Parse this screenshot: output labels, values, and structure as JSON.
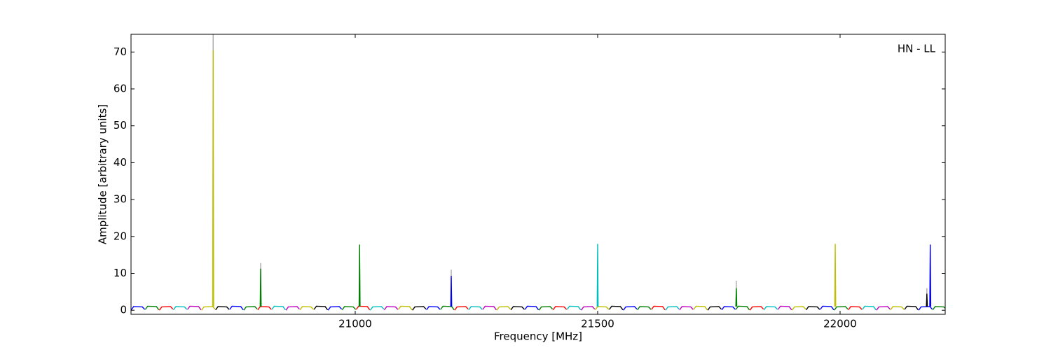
{
  "chart_data": {
    "type": "line",
    "annotation": "HN - LL",
    "x_label": "Frequency [MHz]",
    "y_label": "Amplitude [arbitrary units]",
    "xlim": [
      20537.6,
      22216.8
    ],
    "ylim": [
      -1.1,
      74.8
    ],
    "xticks": [
      21000,
      21500,
      22000
    ],
    "yticks": [
      0,
      10,
      20,
      30,
      40,
      50,
      60,
      70
    ],
    "series": [
      {
        "color": "#aaaaaa",
        "x": [
          20707,
          20707
        ],
        "values": [
          1,
          75
        ]
      },
      {
        "color": "#aaaaaa",
        "x": [
          20805,
          20805
        ],
        "values": [
          1,
          12.8
        ]
      },
      {
        "color": "#aaaaaa",
        "x": [
          21198,
          21198
        ],
        "values": [
          1,
          11
        ]
      },
      {
        "color": "#aaaaaa",
        "x": [
          21786,
          21786
        ],
        "values": [
          1,
          8
        ]
      },
      {
        "color": "#aaaaaa",
        "x": [
          22179,
          22179
        ],
        "values": [
          1,
          6
        ]
      },
      {
        "color": "#0000ff",
        "x": [
          20538,
          20543,
          20561,
          20566
        ],
        "values": [
          0.1,
          1.0,
          0.9,
          0.2
        ]
      },
      {
        "color": "#008000",
        "x": [
          20567,
          20572,
          20590,
          20595
        ],
        "values": [
          0.2,
          1.1,
          1.0,
          0.1
        ]
      },
      {
        "color": "#ff0000",
        "x": [
          20596,
          20601,
          20619,
          20624
        ],
        "values": [
          0.0,
          0.9,
          1.0,
          0.3
        ]
      },
      {
        "color": "#00bfbf",
        "x": [
          20625,
          20630,
          20648,
          20653
        ],
        "values": [
          0.1,
          1.0,
          0.9,
          0.2
        ]
      },
      {
        "color": "#bf00bf",
        "x": [
          20654,
          20659,
          20677,
          20682
        ],
        "values": [
          0.2,
          1.1,
          1.0,
          0.1
        ]
      },
      {
        "color": "#bfbf00",
        "x": [
          20683,
          20688,
          20706,
          20711
        ],
        "values": [
          0.0,
          0.9,
          1.0,
          0.3
        ]
      },
      {
        "color": "#000000",
        "x": [
          20712,
          20717,
          20735,
          20740
        ],
        "values": [
          0.1,
          1.0,
          0.9,
          0.2
        ]
      },
      {
        "color": "#0000ff",
        "x": [
          20741,
          20746,
          20764,
          20769
        ],
        "values": [
          0.2,
          1.1,
          1.0,
          0.1
        ]
      },
      {
        "color": "#008000",
        "x": [
          20770,
          20775,
          20793,
          20798
        ],
        "values": [
          0.0,
          0.9,
          1.0,
          0.3
        ]
      },
      {
        "color": "#ff0000",
        "x": [
          20799,
          20804,
          20822,
          20827
        ],
        "values": [
          0.1,
          1.0,
          0.9,
          0.2
        ]
      },
      {
        "color": "#00bfbf",
        "x": [
          20828,
          20833,
          20851,
          20856
        ],
        "values": [
          0.2,
          1.1,
          1.0,
          0.1
        ]
      },
      {
        "color": "#bf00bf",
        "x": [
          20857,
          20862,
          20880,
          20885
        ],
        "values": [
          0.0,
          0.9,
          1.0,
          0.3
        ]
      },
      {
        "color": "#bfbf00",
        "x": [
          20886,
          20891,
          20909,
          20914
        ],
        "values": [
          0.1,
          1.0,
          0.9,
          0.2
        ]
      },
      {
        "color": "#000000",
        "x": [
          20915,
          20920,
          20938,
          20943
        ],
        "values": [
          0.2,
          1.1,
          1.0,
          0.1
        ]
      },
      {
        "color": "#0000ff",
        "x": [
          20944,
          20949,
          20967,
          20972
        ],
        "values": [
          0.0,
          0.9,
          1.0,
          0.3
        ]
      },
      {
        "color": "#008000",
        "x": [
          20973,
          20978,
          20996,
          21001
        ],
        "values": [
          0.1,
          1.0,
          0.9,
          0.2
        ]
      },
      {
        "color": "#ff0000",
        "x": [
          21002,
          21007,
          21025,
          21030
        ],
        "values": [
          0.2,
          1.1,
          1.0,
          0.1
        ]
      },
      {
        "color": "#00bfbf",
        "x": [
          21031,
          21036,
          21054,
          21059
        ],
        "values": [
          0.0,
          0.9,
          1.0,
          0.3
        ]
      },
      {
        "color": "#bf00bf",
        "x": [
          21060,
          21065,
          21083,
          21088
        ],
        "values": [
          0.1,
          1.0,
          0.9,
          0.2
        ]
      },
      {
        "color": "#bfbf00",
        "x": [
          21089,
          21094,
          21112,
          21117
        ],
        "values": [
          0.2,
          1.1,
          1.0,
          0.1
        ]
      },
      {
        "color": "#000000",
        "x": [
          21118,
          21123,
          21141,
          21146
        ],
        "values": [
          0.0,
          0.9,
          1.0,
          0.3
        ]
      },
      {
        "color": "#0000ff",
        "x": [
          21147,
          21152,
          21170,
          21175
        ],
        "values": [
          0.1,
          1.0,
          0.9,
          0.2
        ]
      },
      {
        "color": "#008000",
        "x": [
          21176,
          21181,
          21199,
          21204
        ],
        "values": [
          0.2,
          1.1,
          1.0,
          0.1
        ]
      },
      {
        "color": "#ff0000",
        "x": [
          21205,
          21210,
          21228,
          21233
        ],
        "values": [
          0.0,
          0.9,
          1.0,
          0.3
        ]
      },
      {
        "color": "#00bfbf",
        "x": [
          21234,
          21239,
          21257,
          21262
        ],
        "values": [
          0.1,
          1.0,
          0.9,
          0.2
        ]
      },
      {
        "color": "#bf00bf",
        "x": [
          21263,
          21268,
          21286,
          21291
        ],
        "values": [
          0.2,
          1.1,
          1.0,
          0.1
        ]
      },
      {
        "color": "#bfbf00",
        "x": [
          21292,
          21297,
          21315,
          21320
        ],
        "values": [
          0.0,
          0.9,
          1.0,
          0.3
        ]
      },
      {
        "color": "#000000",
        "x": [
          21321,
          21326,
          21344,
          21349
        ],
        "values": [
          0.1,
          1.0,
          0.9,
          0.2
        ]
      },
      {
        "color": "#0000ff",
        "x": [
          21350,
          21355,
          21373,
          21378
        ],
        "values": [
          0.2,
          1.1,
          1.0,
          0.1
        ]
      },
      {
        "color": "#008000",
        "x": [
          21379,
          21384,
          21402,
          21407
        ],
        "values": [
          0.0,
          0.9,
          1.0,
          0.3
        ]
      },
      {
        "color": "#ff0000",
        "x": [
          21408,
          21413,
          21431,
          21436
        ],
        "values": [
          0.1,
          1.0,
          0.9,
          0.2
        ]
      },
      {
        "color": "#00bfbf",
        "x": [
          21437,
          21442,
          21460,
          21465
        ],
        "values": [
          0.2,
          1.1,
          1.0,
          0.1
        ]
      },
      {
        "color": "#bf00bf",
        "x": [
          21466,
          21471,
          21489,
          21494
        ],
        "values": [
          0.0,
          0.9,
          1.0,
          0.3
        ]
      },
      {
        "color": "#bfbf00",
        "x": [
          21495,
          21500,
          21518,
          21523
        ],
        "values": [
          0.1,
          1.0,
          0.9,
          0.2
        ]
      },
      {
        "color": "#000000",
        "x": [
          21524,
          21529,
          21547,
          21552
        ],
        "values": [
          0.2,
          1.1,
          1.0,
          0.1
        ]
      },
      {
        "color": "#0000ff",
        "x": [
          21553,
          21558,
          21576,
          21581
        ],
        "values": [
          0.0,
          0.9,
          1.0,
          0.3
        ]
      },
      {
        "color": "#008000",
        "x": [
          21582,
          21587,
          21605,
          21610
        ],
        "values": [
          0.1,
          1.0,
          0.9,
          0.2
        ]
      },
      {
        "color": "#ff0000",
        "x": [
          21611,
          21616,
          21634,
          21639
        ],
        "values": [
          0.2,
          1.1,
          1.0,
          0.1
        ]
      },
      {
        "color": "#00bfbf",
        "x": [
          21640,
          21645,
          21663,
          21668
        ],
        "values": [
          0.0,
          0.9,
          1.0,
          0.3
        ]
      },
      {
        "color": "#bf00bf",
        "x": [
          21669,
          21674,
          21692,
          21697
        ],
        "values": [
          0.1,
          1.0,
          0.9,
          0.2
        ]
      },
      {
        "color": "#bfbf00",
        "x": [
          21698,
          21703,
          21721,
          21726
        ],
        "values": [
          0.2,
          1.1,
          1.0,
          0.1
        ]
      },
      {
        "color": "#000000",
        "x": [
          21727,
          21732,
          21750,
          21755
        ],
        "values": [
          0.0,
          0.9,
          1.0,
          0.3
        ]
      },
      {
        "color": "#0000ff",
        "x": [
          21756,
          21761,
          21779,
          21784
        ],
        "values": [
          0.1,
          1.0,
          0.9,
          0.2
        ]
      },
      {
        "color": "#008000",
        "x": [
          21785,
          21790,
          21808,
          21813
        ],
        "values": [
          0.2,
          1.1,
          1.0,
          0.1
        ]
      },
      {
        "color": "#ff0000",
        "x": [
          21814,
          21819,
          21837,
          21842
        ],
        "values": [
          0.0,
          0.9,
          1.0,
          0.3
        ]
      },
      {
        "color": "#00bfbf",
        "x": [
          21843,
          21848,
          21866,
          21871
        ],
        "values": [
          0.1,
          1.0,
          0.9,
          0.2
        ]
      },
      {
        "color": "#bf00bf",
        "x": [
          21872,
          21877,
          21895,
          21900
        ],
        "values": [
          0.2,
          1.1,
          1.0,
          0.1
        ]
      },
      {
        "color": "#bfbf00",
        "x": [
          21901,
          21906,
          21924,
          21929
        ],
        "values": [
          0.0,
          0.9,
          1.0,
          0.3
        ]
      },
      {
        "color": "#000000",
        "x": [
          21930,
          21935,
          21953,
          21958
        ],
        "values": [
          0.1,
          1.0,
          0.9,
          0.2
        ]
      },
      {
        "color": "#0000ff",
        "x": [
          21959,
          21964,
          21982,
          21987
        ],
        "values": [
          0.2,
          1.1,
          1.0,
          0.1
        ]
      },
      {
        "color": "#008000",
        "x": [
          21988,
          21993,
          22011,
          22016
        ],
        "values": [
          0.0,
          0.9,
          1.0,
          0.3
        ]
      },
      {
        "color": "#ff0000",
        "x": [
          22017,
          22022,
          22040,
          22045
        ],
        "values": [
          0.1,
          1.0,
          0.9,
          0.2
        ]
      },
      {
        "color": "#00bfbf",
        "x": [
          22046,
          22051,
          22069,
          22074
        ],
        "values": [
          0.2,
          1.1,
          1.0,
          0.1
        ]
      },
      {
        "color": "#bf00bf",
        "x": [
          22075,
          22080,
          22098,
          22103
        ],
        "values": [
          0.0,
          0.9,
          1.0,
          0.3
        ]
      },
      {
        "color": "#bfbf00",
        "x": [
          22104,
          22109,
          22127,
          22132
        ],
        "values": [
          0.1,
          1.0,
          0.9,
          0.2
        ]
      },
      {
        "color": "#000000",
        "x": [
          22133,
          22138,
          22156,
          22161
        ],
        "values": [
          0.2,
          1.1,
          1.0,
          0.1
        ]
      },
      {
        "color": "#0000ff",
        "x": [
          22162,
          22167,
          22185,
          22190
        ],
        "values": [
          0.0,
          0.9,
          1.0,
          0.3
        ]
      },
      {
        "color": "#008000",
        "x": [
          22191,
          22196,
          22214,
          22219
        ],
        "values": [
          0.1,
          1.0,
          0.9,
          0.2
        ]
      },
      {
        "color": "#bfbf00",
        "x": [
          20706,
          20707,
          20708
        ],
        "values": [
          1,
          70.5,
          1
        ]
      },
      {
        "color": "#008000",
        "x": [
          20804,
          20805,
          20806
        ],
        "values": [
          1,
          11.3,
          1
        ]
      },
      {
        "color": "#008000",
        "x": [
          21008,
          21009,
          21010
        ],
        "values": [
          1,
          17.8,
          1
        ]
      },
      {
        "color": "#0000ff",
        "x": [
          21197,
          21198,
          21199
        ],
        "values": [
          1,
          9.3,
          1
        ]
      },
      {
        "color": "#00bfbf",
        "x": [
          21499,
          21500,
          21501
        ],
        "values": [
          1,
          18,
          1
        ]
      },
      {
        "color": "#008000",
        "x": [
          21785,
          21786,
          21787
        ],
        "values": [
          1,
          6,
          1
        ]
      },
      {
        "color": "#bfbf00",
        "x": [
          21989,
          21990,
          21991
        ],
        "values": [
          1,
          18,
          1
        ]
      },
      {
        "color": "#000000",
        "x": [
          22178,
          22179,
          22180
        ],
        "values": [
          1,
          4.5,
          1
        ]
      },
      {
        "color": "#0000ff",
        "x": [
          22185,
          22186,
          22187
        ],
        "values": [
          1,
          17.8,
          1
        ]
      }
    ]
  }
}
